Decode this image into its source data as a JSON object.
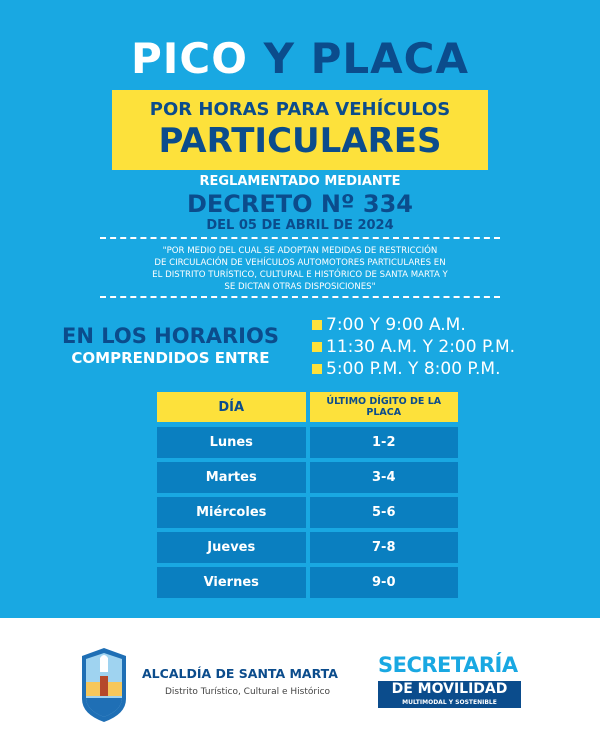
{
  "colors": {
    "background": "#19a8e2",
    "dark_blue": "#0b4c8c",
    "yellow": "#fde13b",
    "cell": "#0a7fc0"
  },
  "title": {
    "part1": "PICO",
    "part2": "Y PLACA"
  },
  "banner": {
    "line1": "POR HORAS PARA VEHÍCULOS",
    "line2": "PARTICULARES"
  },
  "decree": {
    "intro": "REGLAMENTADO MEDIANTE",
    "number": "DECRETO Nº 334",
    "date": "DEL 05 DE ABRIL DE 2024"
  },
  "quote": [
    "\"POR MEDIO DEL CUAL SE ADOPTAN MEDIDAS DE RESTRICCIÓN",
    "DE CIRCULACIÓN DE VEHÍCULOS AUTOMOTORES PARTICULARES EN",
    "EL DISTRITO TURÍSTICO, CULTURAL E HISTÓRICO DE SANTA MARTA Y",
    "SE DICTAN OTRAS DISPOSICIONES\""
  ],
  "schedule": {
    "heading1": "EN LOS HORARIOS",
    "heading2": "COMPRENDIDOS ENTRE",
    "times": [
      "7:00 Y 9:00 A.M.",
      "11:30 A.M. Y 2:00 P.M.",
      "5:00 P.M. Y 8:00 P.M."
    ]
  },
  "table": {
    "headers": [
      "DÍA",
      "ÚLTIMO DÍGITO DE LA PLACA"
    ],
    "rows": [
      [
        "Lunes",
        "1-2"
      ],
      [
        "Martes",
        "3-4"
      ],
      [
        "Miércoles",
        "5-6"
      ],
      [
        "Jueves",
        "7-8"
      ],
      [
        "Viernes",
        "9-0"
      ]
    ]
  },
  "footer": {
    "alcaldia": "ALCALDÍA DE SANTA MARTA",
    "distrito": "Distrito Turístico, Cultural e Histórico",
    "secretaria": "SECRETARÍA",
    "movilidad": "DE MOVILIDAD",
    "multimodal": "MULTIMODAL Y SOSTENIBLE"
  }
}
